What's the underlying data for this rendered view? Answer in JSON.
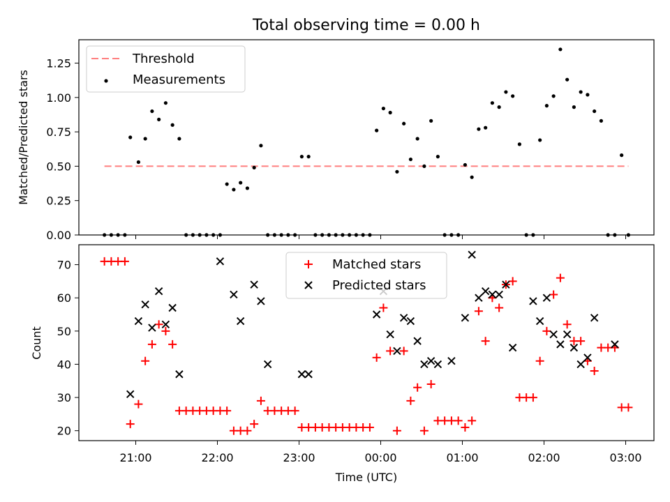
{
  "chart_data": [
    {
      "type": "line+scatter",
      "title": "Total observing time = 0.00 h",
      "xlabel": "",
      "ylabel": "Matched/Predicted stars",
      "ylim": [
        0,
        1.42
      ],
      "y_ticks": [
        "0.00",
        "0.25",
        "0.50",
        "0.75",
        "1.00",
        "1.25"
      ],
      "legend": [
        "Threshold",
        "Measurements"
      ],
      "legend_position": "upper left",
      "threshold": {
        "name": "Threshold",
        "value": 0.5,
        "x_start": "20:37",
        "x_end": "03:02",
        "color": "#ff7f7f"
      },
      "measurements": {
        "name": "Measurements",
        "color": "#000000",
        "x": [
          "20:37",
          "20:42",
          "20:47",
          "20:52",
          "20:56",
          "21:02",
          "21:07",
          "21:12",
          "21:17",
          "21:22",
          "21:27",
          "21:32",
          "21:37",
          "21:42",
          "21:47",
          "21:52",
          "21:57",
          "22:02",
          "22:07",
          "22:12",
          "22:17",
          "22:22",
          "22:27",
          "22:32",
          "22:37",
          "22:42",
          "22:47",
          "22:52",
          "22:57",
          "23:02",
          "23:07",
          "23:12",
          "23:17",
          "23:22",
          "23:27",
          "23:32",
          "23:37",
          "23:42",
          "23:47",
          "23:52",
          "23:57",
          "00:02",
          "00:07",
          "00:12",
          "00:17",
          "00:22",
          "00:27",
          "00:32",
          "00:37",
          "00:42",
          "00:47",
          "00:52",
          "00:57",
          "01:02",
          "01:07",
          "01:12",
          "01:17",
          "01:22",
          "01:27",
          "01:32",
          "01:37",
          "01:42",
          "01:47",
          "01:52",
          "01:57",
          "02:02",
          "02:07",
          "02:12",
          "02:17",
          "02:22",
          "02:27",
          "02:32",
          "02:37",
          "02:42",
          "02:47",
          "02:52",
          "02:57",
          "03:02"
        ],
        "y": [
          0,
          0,
          0,
          0,
          0.71,
          0.53,
          0.7,
          0.9,
          0.84,
          0.96,
          0.8,
          0.7,
          0,
          0,
          0,
          0,
          0,
          0,
          0.37,
          0.33,
          0.38,
          0.34,
          0.49,
          0.65,
          0,
          0,
          0,
          0,
          0,
          0.57,
          0.57,
          0,
          0,
          0,
          0,
          0,
          0,
          0,
          0,
          0,
          0.76,
          0.92,
          0.89,
          0.46,
          0.81,
          0.55,
          0.7,
          0.5,
          0.83,
          0.57,
          0,
          0,
          0,
          0.51,
          0.42,
          0.77,
          0.78,
          0.96,
          0.93,
          1.04,
          1.01,
          0.66,
          0,
          0,
          0.69,
          0.94,
          1.01,
          1.35,
          1.13,
          0.93,
          1.04,
          1.02,
          0.9,
          0.83,
          0,
          0,
          0.58,
          0
        ]
      }
    },
    {
      "type": "scatter",
      "xlabel": "Time (UTC)",
      "ylabel": "Count",
      "ylim": [
        17,
        76
      ],
      "y_ticks": [
        "20",
        "30",
        "40",
        "50",
        "60",
        "70"
      ],
      "x_ticks": [
        "21:00",
        "22:00",
        "23:00",
        "00:00",
        "01:00",
        "02:00",
        "03:00"
      ],
      "legend": [
        "Matched stars",
        "Predicted stars"
      ],
      "legend_position": "upper center",
      "series": [
        {
          "name": "Matched stars",
          "marker": "+",
          "color": "#ff0000",
          "x": [
            "20:37",
            "20:42",
            "20:47",
            "20:52",
            "20:56",
            "21:02",
            "21:07",
            "21:12",
            "21:17",
            "21:22",
            "21:27",
            "21:32",
            "21:37",
            "21:42",
            "21:47",
            "21:52",
            "21:57",
            "22:02",
            "22:07",
            "22:12",
            "22:17",
            "22:22",
            "22:27",
            "22:32",
            "22:37",
            "22:42",
            "22:47",
            "22:52",
            "22:57",
            "23:02",
            "23:07",
            "23:12",
            "23:17",
            "23:22",
            "23:27",
            "23:32",
            "23:37",
            "23:42",
            "23:47",
            "23:52",
            "23:57",
            "00:02",
            "00:07",
            "00:12",
            "00:17",
            "00:22",
            "00:27",
            "00:32",
            "00:37",
            "00:42",
            "00:47",
            "00:52",
            "00:57",
            "01:02",
            "01:07",
            "01:12",
            "01:17",
            "01:22",
            "01:27",
            "01:32",
            "01:37",
            "01:42",
            "01:47",
            "01:52",
            "01:57",
            "02:02",
            "02:07",
            "02:12",
            "02:17",
            "02:22",
            "02:27",
            "02:32",
            "02:37",
            "02:42",
            "02:47",
            "02:52",
            "02:57",
            "03:02"
          ],
          "y": [
            71,
            71,
            71,
            71,
            22,
            28,
            41,
            46,
            52,
            50,
            46,
            26,
            26,
            26,
            26,
            26,
            26,
            26,
            26,
            20,
            20,
            20,
            22,
            29,
            26,
            26,
            26,
            26,
            26,
            21,
            21,
            21,
            21,
            21,
            21,
            21,
            21,
            21,
            21,
            21,
            42,
            57,
            44,
            20,
            44,
            29,
            33,
            20,
            34,
            23,
            23,
            23,
            23,
            21,
            23,
            56,
            47,
            60,
            57,
            64,
            65,
            30,
            30,
            30,
            41,
            50,
            61,
            66,
            52,
            47,
            47,
            41,
            38,
            45,
            45,
            45,
            27,
            27
          ]
        },
        {
          "name": "Predicted stars",
          "marker": "x",
          "color": "#000000",
          "x": [
            "20:56",
            "21:02",
            "21:07",
            "21:12",
            "21:17",
            "21:22",
            "21:27",
            "21:32",
            "22:02",
            "22:12",
            "22:17",
            "22:27",
            "22:32",
            "22:37",
            "23:02",
            "23:07",
            "23:57",
            "00:02",
            "00:07",
            "00:12",
            "00:17",
            "00:22",
            "00:27",
            "00:32",
            "00:37",
            "00:42",
            "00:52",
            "01:02",
            "01:07",
            "01:12",
            "01:17",
            "01:22",
            "01:27",
            "01:32",
            "01:37",
            "01:52",
            "01:57",
            "02:02",
            "02:07",
            "02:12",
            "02:17",
            "02:22",
            "02:27",
            "02:32",
            "02:37",
            "02:52"
          ],
          "y": [
            31,
            53,
            58,
            51,
            62,
            52,
            57,
            37,
            71,
            61,
            53,
            64,
            59,
            40,
            37,
            37,
            55,
            62,
            49,
            44,
            54,
            53,
            47,
            40,
            41,
            40,
            41,
            54,
            73,
            60,
            62,
            61,
            61,
            64,
            45,
            59,
            53,
            60,
            49,
            46,
            49,
            45,
            40,
            42,
            54,
            46
          ]
        }
      ]
    }
  ]
}
